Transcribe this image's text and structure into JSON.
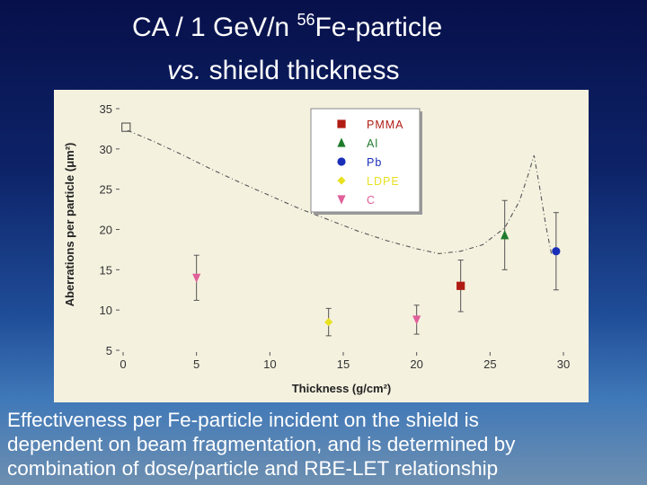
{
  "slide": {
    "title_line1_prefix": "CA / 1 GeV/n ",
    "title_line1_sup": "56",
    "title_line1_suffix": "Fe-particle",
    "title_line2_italic": "vs.",
    "title_line2_rest": " shield thickness"
  },
  "caption": {
    "line1": "Effectiveness per Fe-particle incident on the shield is",
    "line2": "dependent on beam fragmentation, and is determined by",
    "line3": "combination of dose/particle and RBE-LET relationship"
  },
  "chart_data": {
    "type": "scatter",
    "xlabel": "Thickness (g/cm²)",
    "ylabel": "Aberrations per particle (μm²)",
    "xlim": [
      0,
      30
    ],
    "ylim": [
      5,
      35
    ],
    "x_ticks": [
      0,
      5,
      10,
      15,
      20,
      25,
      30
    ],
    "y_ticks": [
      5,
      10,
      15,
      20,
      25,
      30,
      35
    ],
    "grid": false,
    "legend_position": "top-right",
    "colors": {
      "PMMA": "#b01c14",
      "Al": "#1f7a2c",
      "Pb": "#1a2fb8",
      "LDPE": "#e9e020",
      "C": "#e0609a",
      "curve": "#555555"
    },
    "series": [
      {
        "name": "PMMA",
        "marker": "square",
        "points": [
          {
            "x": 23.0,
            "y": 13.0,
            "err": 3.2
          }
        ]
      },
      {
        "name": "Al",
        "marker": "triangle-up",
        "points": [
          {
            "x": 26.0,
            "y": 19.3,
            "err": 4.3
          }
        ]
      },
      {
        "name": "Pb",
        "marker": "circle",
        "points": [
          {
            "x": 29.5,
            "y": 17.3,
            "err": 4.8
          }
        ]
      },
      {
        "name": "LDPE",
        "marker": "diamond",
        "points": [
          {
            "x": 14.0,
            "y": 8.5,
            "err": 1.7
          }
        ]
      },
      {
        "name": "C",
        "marker": "triangle-down",
        "points": [
          {
            "x": 5.0,
            "y": 14.0,
            "err": 2.8
          },
          {
            "x": 20.0,
            "y": 8.8,
            "err": 1.8
          }
        ]
      }
    ],
    "initial_point": {
      "marker": "open-square",
      "x": 0.2,
      "y": 32.7
    },
    "trend_curve": [
      {
        "x": 0.3,
        "y": 32.3
      },
      {
        "x": 2,
        "y": 31.0
      },
      {
        "x": 4,
        "y": 29.3
      },
      {
        "x": 6,
        "y": 27.5
      },
      {
        "x": 8,
        "y": 25.8
      },
      {
        "x": 10,
        "y": 24.2
      },
      {
        "x": 12,
        "y": 22.6
      },
      {
        "x": 14,
        "y": 21.2
      },
      {
        "x": 16,
        "y": 19.8
      },
      {
        "x": 18,
        "y": 18.6
      },
      {
        "x": 20,
        "y": 17.6
      },
      {
        "x": 21.5,
        "y": 17.0
      },
      {
        "x": 23,
        "y": 17.3
      },
      {
        "x": 24.5,
        "y": 18.1
      },
      {
        "x": 26,
        "y": 20.2
      },
      {
        "x": 27,
        "y": 23.5
      },
      {
        "x": 27.6,
        "y": 26.8
      },
      {
        "x": 28.0,
        "y": 29.2
      },
      {
        "x": 28.4,
        "y": 25.0
      },
      {
        "x": 28.8,
        "y": 20.5
      },
      {
        "x": 29.2,
        "y": 16.8
      }
    ]
  }
}
